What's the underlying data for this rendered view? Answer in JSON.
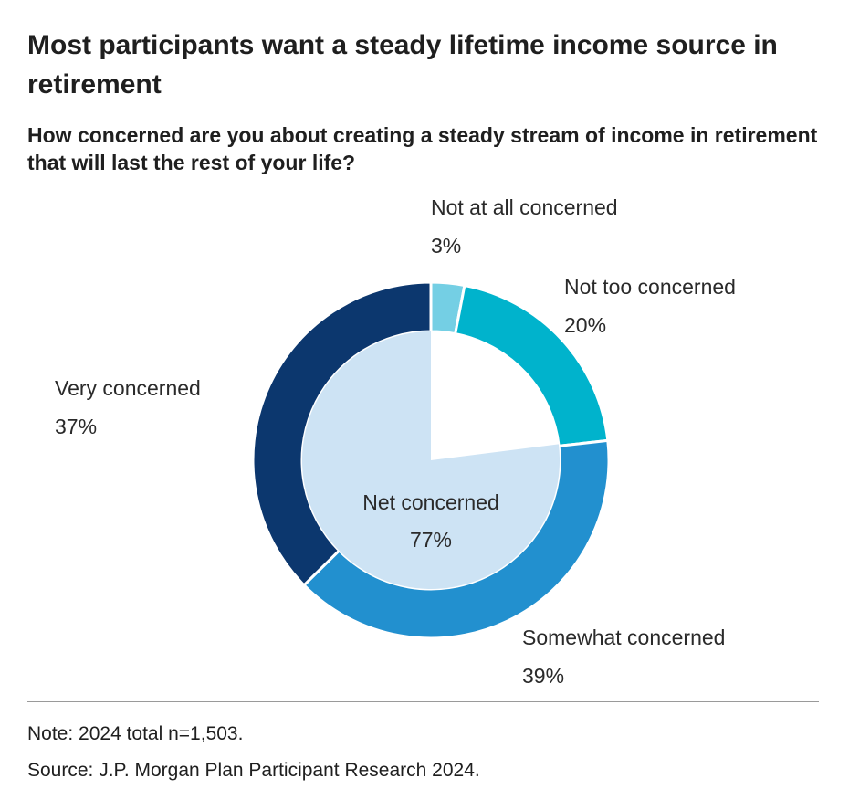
{
  "title": "Most participants want a steady lifetime income source in retirement",
  "subtitle": "How concerned are you about creating a steady stream of income in retirement that will last the rest of your life?",
  "note": "Note: 2024 total n=1,503.",
  "source": "Source: J.P. Morgan Plan Participant Research 2024.",
  "chart_data": {
    "type": "pie",
    "style": "donut",
    "slices": [
      {
        "label": "Not at all concerned",
        "value": 3,
        "display": "3%",
        "color": "#74cfe4"
      },
      {
        "label": "Not too concerned",
        "value": 20,
        "display": "20%",
        "color": "#00b3cc"
      },
      {
        "label": "Somewhat concerned",
        "value": 39,
        "display": "39%",
        "color": "#2290cf"
      },
      {
        "label": "Very concerned",
        "value": 37,
        "display": "37%",
        "color": "#0c376e"
      }
    ],
    "center": {
      "label": "Net concerned",
      "value": 77,
      "display": "77%",
      "color": "#cde3f4"
    }
  }
}
